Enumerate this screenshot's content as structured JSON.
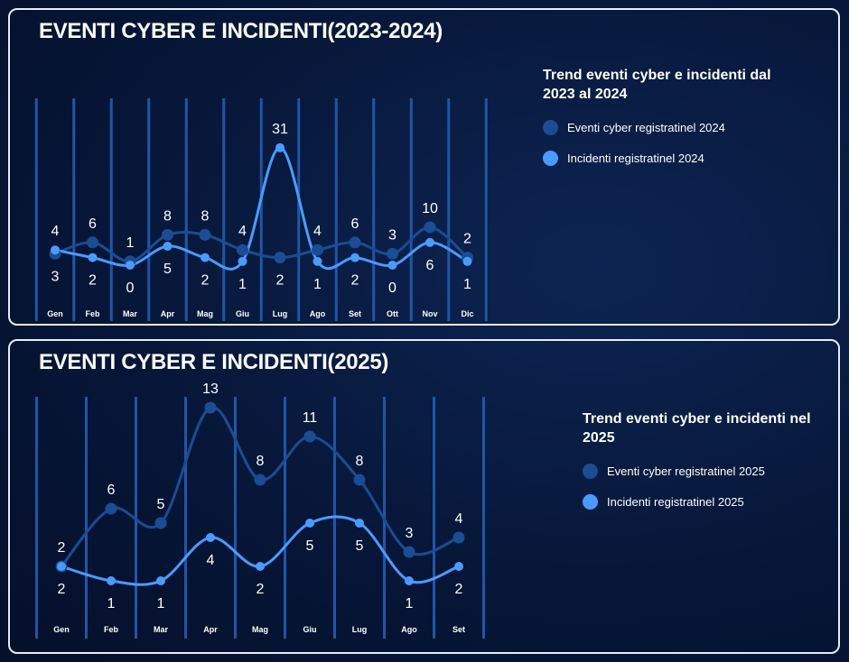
{
  "colors": {
    "events": "#1a4d94",
    "incidents": "#4a9bff",
    "gridline": "#1f56a8"
  },
  "panel1": {
    "title": "EVENTI CYBER E INCIDENTI(2023-2024)",
    "legend": {
      "title": "Trend eventi cyber e incidenti dal 2023 al 2024",
      "events_label": "Eventi cyber registratinel 2024",
      "incidents_label": "Incidenti registratinel 2024"
    }
  },
  "panel2": {
    "title": "EVENTI CYBER E INCIDENTI(2025)",
    "legend": {
      "title": "Trend eventi cyber e incidenti nel 2025",
      "events_label": "Eventi cyber registratinel 2025",
      "incidents_label": "Incidenti registratinel 2025"
    }
  },
  "chart_data": [
    {
      "type": "line",
      "title": "EVENTI CYBER E INCIDENTI(2023-2024)",
      "categories": [
        "Gen",
        "Feb",
        "Mar",
        "Apr",
        "Mag",
        "Giu",
        "Lug",
        "Ago",
        "Set",
        "Ott",
        "Nov",
        "Dic"
      ],
      "series": [
        {
          "name": "Eventi cyber registratinel 2024",
          "values": [
            3,
            6,
            1,
            8,
            8,
            4,
            2,
            4,
            6,
            3,
            10,
            2
          ]
        },
        {
          "name": "Incidenti registratinel 2024",
          "values": [
            4,
            2,
            0,
            5,
            2,
            1,
            31,
            1,
            2,
            0,
            6,
            1
          ]
        }
      ],
      "value_labels": {
        "events": [
          "3",
          "6",
          "1",
          "8",
          "8",
          "4",
          "2",
          "4",
          "6",
          "3",
          "10",
          "2"
        ],
        "incidents": [
          "4",
          "2",
          "0",
          "5",
          "2",
          "1",
          "31",
          "1",
          "2",
          "0",
          "6",
          "1"
        ]
      },
      "smooth": true,
      "grid": "vertical",
      "legend_position": "right"
    },
    {
      "type": "line",
      "title": "EVENTI CYBER E INCIDENTI(2025)",
      "categories": [
        "Gen",
        "Feb",
        "Mar",
        "Apr",
        "Mag",
        "Giu",
        "Lug",
        "Ago",
        "Set"
      ],
      "series": [
        {
          "name": "Eventi cyber registratinel 2025",
          "values": [
            2,
            6,
            5,
            13,
            8,
            11,
            8,
            3,
            4
          ]
        },
        {
          "name": "Incidenti registratinel 2025",
          "values": [
            2,
            1,
            1,
            4,
            2,
            5,
            5,
            1,
            2
          ]
        }
      ],
      "value_labels": {
        "events": [
          "2",
          "6",
          "5",
          "13",
          "8",
          "11",
          "8",
          "3",
          "4"
        ],
        "incidents": [
          "2",
          "1",
          "1",
          "4",
          "2",
          "5",
          "5",
          "1",
          "2"
        ]
      },
      "smooth": true,
      "grid": "vertical",
      "legend_position": "right"
    }
  ]
}
